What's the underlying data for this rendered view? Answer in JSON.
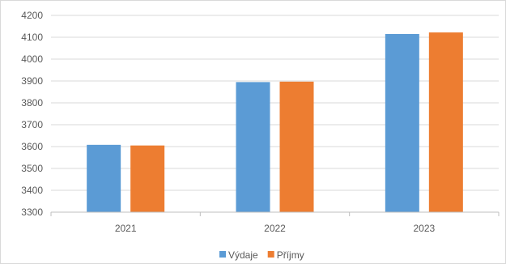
{
  "chart_data": {
    "type": "bar",
    "categories": [
      "2021",
      "2022",
      "2023"
    ],
    "series": [
      {
        "name": "Výdaje",
        "color": "#5b9bd5",
        "values": [
          3608,
          3895,
          4115
        ]
      },
      {
        "name": "Příjmy",
        "color": "#ed7d31",
        "values": [
          3605,
          3897,
          4122
        ]
      }
    ],
    "ylim": [
      3300,
      4200
    ],
    "yticks": [
      "3300",
      "3400",
      "3500",
      "3600",
      "3700",
      "3800",
      "3900",
      "4000",
      "4100",
      "4200"
    ],
    "grid": true,
    "legend_position": "bottom",
    "title": "",
    "xlabel": "",
    "ylabel": ""
  }
}
